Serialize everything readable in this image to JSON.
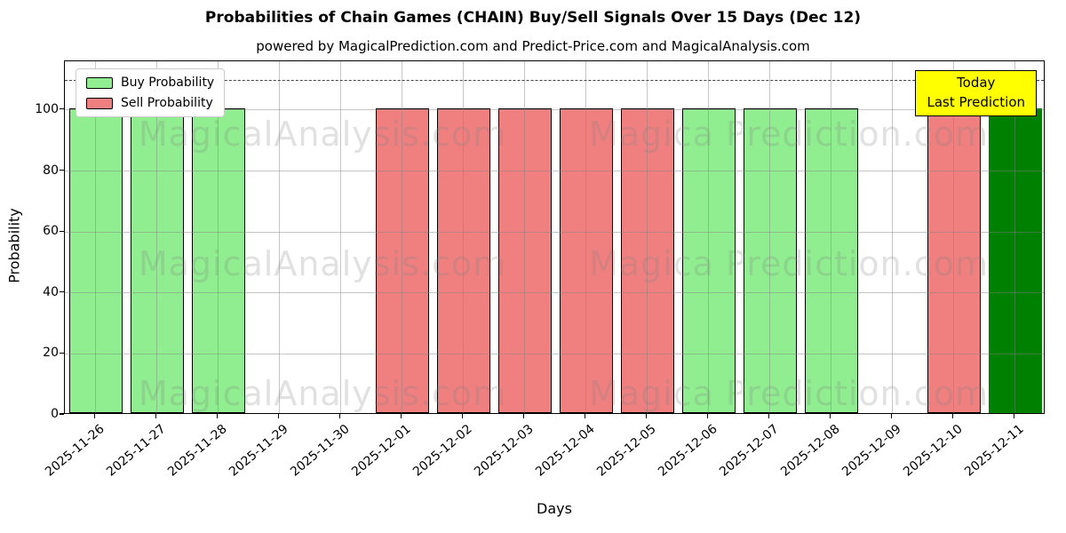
{
  "header": {
    "title": "Probabilities of Chain Games (CHAIN) Buy/Sell Signals Over 15 Days (Dec 12)",
    "subtitle": "powered by MagicalPrediction.com and Predict-Price.com and MagicalAnalysis.com"
  },
  "legend": {
    "items": [
      {
        "label": "Buy Probability",
        "color": "#90EE90"
      },
      {
        "label": "Sell Probability",
        "color": "#F08080"
      }
    ]
  },
  "annotation": {
    "line1": "Today",
    "line2": "Last Prediction",
    "bg_color": "#FFFF00"
  },
  "watermarks": {
    "left_text": "MagicalAnalysis.com",
    "right_text": "Magica Prediction.com"
  },
  "chart_data": {
    "type": "bar",
    "title": "Probabilities of Chain Games (CHAIN) Buy/Sell Signals Over 15 Days (Dec 12)",
    "xlabel": "Days",
    "ylabel": "Probability",
    "categories": [
      "2025-11-26",
      "2025-11-27",
      "2025-11-28",
      "2025-11-29",
      "2025-11-30",
      "2025-12-01",
      "2025-12-02",
      "2025-12-03",
      "2025-12-04",
      "2025-12-05",
      "2025-12-06",
      "2025-12-07",
      "2025-12-08",
      "2025-12-09",
      "2025-12-10",
      "2025-12-11"
    ],
    "series": [
      {
        "name": "Buy Probability",
        "color": "#90EE90",
        "edge": "#000000",
        "values": [
          100,
          100,
          100,
          0,
          0,
          0,
          0,
          0,
          0,
          0,
          100,
          100,
          100,
          0,
          0,
          0
        ]
      },
      {
        "name": "Sell Probability",
        "color": "#F08080",
        "edge": "#000000",
        "values": [
          0,
          0,
          0,
          0,
          0,
          100,
          100,
          100,
          100,
          100,
          0,
          0,
          0,
          0,
          100,
          0
        ]
      },
      {
        "name": "Today Last Prediction (Buy)",
        "color": "#008000",
        "edge": "#008000",
        "values": [
          0,
          0,
          0,
          0,
          0,
          0,
          0,
          0,
          0,
          0,
          0,
          0,
          0,
          0,
          0,
          100
        ]
      }
    ],
    "ylim": [
      0,
      116
    ],
    "yticks": [
      0,
      20,
      40,
      60,
      80,
      100
    ],
    "dashed_line_y": 110,
    "grid": true,
    "legend_position": "upper left"
  }
}
